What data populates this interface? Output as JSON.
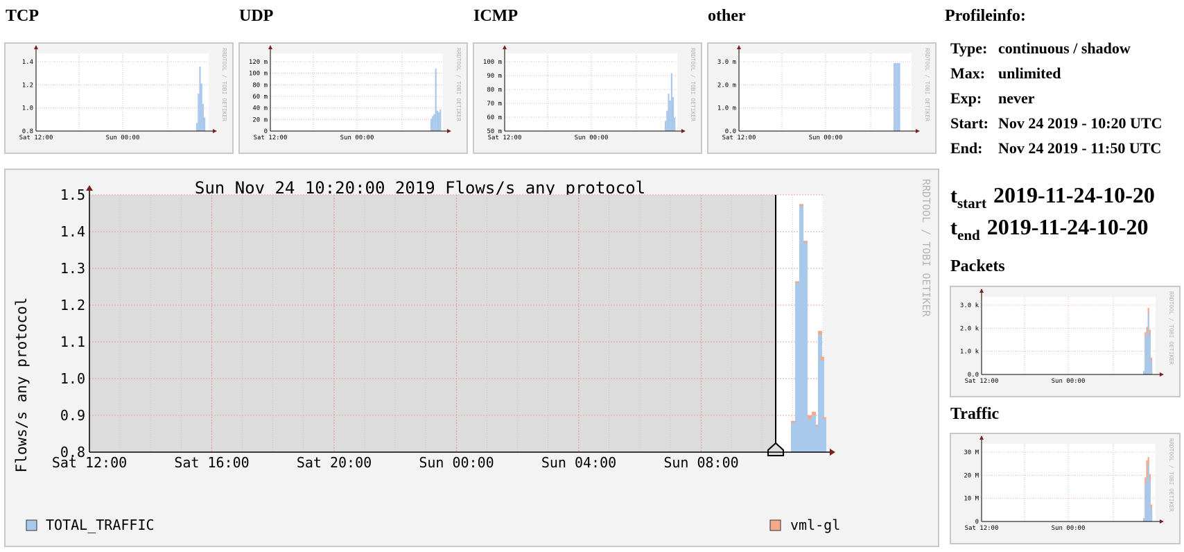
{
  "small_graphs": [
    {
      "key": "tcp",
      "title": "TCP",
      "y_ticks": [
        "1.4",
        "1.2",
        "1.0",
        "0.8"
      ],
      "x_ticks": [
        "Sat 12:00",
        "Sun 00:00"
      ],
      "watermark": "RRDTOOL / TOBI OETIKER"
    },
    {
      "key": "udp",
      "title": "UDP",
      "y_ticks": [
        "120 m",
        "100 m",
        "80 m",
        "60 m",
        "40 m",
        "20 m",
        "0"
      ],
      "x_ticks": [
        "Sat 12:00",
        "Sun 00:00"
      ],
      "watermark": "RRDTOOL / TOBI OETIKER"
    },
    {
      "key": "icmp",
      "title": "ICMP",
      "y_ticks": [
        "100 m",
        "90 m",
        "80 m",
        "70 m",
        "60 m",
        "50 m"
      ],
      "x_ticks": [
        "Sat 12:00",
        "Sun 00:00"
      ],
      "watermark": "RRDTOOL / TOBI OETIKER"
    },
    {
      "key": "other",
      "title": "other",
      "y_ticks": [
        "3.0 m",
        "2.0 m",
        "1.0 m",
        "0.0"
      ],
      "x_ticks": [
        "Sat 12:00",
        "Sun 00:00"
      ],
      "watermark": "RRDTOOL / TOBI OETIKER"
    }
  ],
  "main_graph": {
    "title": "Sun Nov 24 10:20:00 2019 Flows/s any protocol",
    "ylabel": "Flows/s any protocol",
    "watermark": "RRDTOOL / TOBI OETIKER",
    "y_ticks": [
      "1.5",
      "1.4",
      "1.3",
      "1.2",
      "1.1",
      "1.0",
      "0.9",
      "0.8"
    ],
    "x_ticks": [
      "Sat 12:00",
      "Sat 16:00",
      "Sat 20:00",
      "Sun 00:00",
      "Sun 04:00",
      "Sun 08:00"
    ],
    "legend": [
      {
        "label": "TOTAL_TRAFFIC",
        "color": "#a8c8ec"
      },
      {
        "label": "vml-gl",
        "color": "#f4a98a"
      }
    ]
  },
  "profile": {
    "heading": "Profileinfo:",
    "rows": [
      {
        "key": "Type:",
        "value": "continuous / shadow"
      },
      {
        "key": "Max:",
        "value": "unlimited"
      },
      {
        "key": "Exp:",
        "value": "never"
      },
      {
        "key": "Start:",
        "value": "Nov 24 2019 - 10:20 UTC"
      },
      {
        "key": "End:",
        "value": "Nov 24 2019 - 11:50 UTC"
      }
    ]
  },
  "t_start": {
    "t": "t",
    "sub": "start",
    "value": "2019-11-24-10-20"
  },
  "t_end": {
    "t": "t",
    "sub": "end",
    "value": "2019-11-24-10-20"
  },
  "packets": {
    "title": "Packets",
    "y_ticks": [
      "3.0 k",
      "2.0 k",
      "1.0 k",
      "0.0"
    ],
    "x_ticks": [
      "Sat 12:00",
      "Sun 00:00"
    ],
    "watermark": "RRDTOOL / TOBI OETIKER"
  },
  "traffic": {
    "title": "Traffic",
    "y_ticks": [
      "30 M",
      "20 M",
      "10 M",
      "0"
    ],
    "x_ticks": [
      "Sat 12:00",
      "Sun 00:00"
    ],
    "watermark": "RRDTOOL / TOBI OETIKER"
  },
  "colors": {
    "grid": "#e8a0a0",
    "axis": "#7a1f1f",
    "series_blue": "#a8c8ec",
    "series_orange": "#f4a98a",
    "shade": "#dcdcdc"
  }
}
